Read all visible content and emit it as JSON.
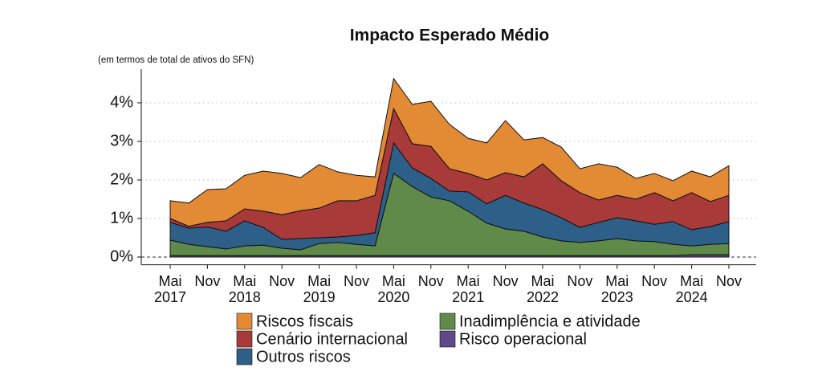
{
  "chart_data": {
    "type": "stacked_area",
    "title": "Impacto Esperado Médio",
    "subtitle": "(em termos de total de ativos do SFN)",
    "categories": [
      "Mai\n2017",
      null,
      "Nov",
      null,
      "Mai\n2018",
      null,
      "Nov",
      null,
      "Mai\n2019",
      null,
      "Nov",
      null,
      "Mai\n2020",
      null,
      "Nov",
      null,
      "Mai\n2021",
      null,
      "Nov",
      null,
      "Mai\n2022",
      null,
      "Nov",
      null,
      "Mai\n2023",
      null,
      "Nov",
      null,
      "Mai\n2024",
      null,
      "Nov"
    ],
    "ylim": [
      -0.2,
      4.8
    ],
    "yticks": [
      {
        "value": 0,
        "label": "0%"
      },
      {
        "value": 1,
        "label": "1%"
      },
      {
        "value": 2,
        "label": "2%"
      },
      {
        "value": 3,
        "label": "3%"
      },
      {
        "value": 4,
        "label": "4%"
      }
    ],
    "grid": true,
    "series": [
      {
        "name": "Riscos fiscais",
        "color": "#e38a35",
        "values": [
          0.46,
          0.6,
          0.85,
          0.83,
          0.87,
          1.04,
          1.07,
          0.86,
          1.13,
          0.75,
          0.66,
          0.48,
          0.78,
          1.02,
          1.17,
          1.15,
          0.91,
          0.96,
          1.35,
          0.96,
          0.68,
          0.87,
          0.62,
          0.94,
          0.73,
          0.54,
          0.5,
          0.52,
          0.56,
          0.64,
          0.77
        ]
      },
      {
        "name": "Cenário internacional",
        "color": "#a83a3a",
        "values": [
          0.1,
          0.05,
          0.12,
          0.27,
          0.31,
          0.42,
          0.64,
          0.72,
          0.77,
          0.94,
          0.9,
          0.97,
          0.89,
          0.63,
          0.83,
          0.58,
          0.48,
          0.62,
          0.59,
          0.68,
          1.19,
          0.96,
          0.9,
          0.58,
          0.58,
          0.56,
          0.82,
          0.54,
          0.96,
          0.65,
          0.68
        ]
      },
      {
        "name": "Outros riscos",
        "color": "#2e5f88",
        "values": [
          0.46,
          0.42,
          0.51,
          0.46,
          0.65,
          0.46,
          0.23,
          0.29,
          0.15,
          0.14,
          0.23,
          0.34,
          0.79,
          0.48,
          0.48,
          0.25,
          0.5,
          0.5,
          0.87,
          0.73,
          0.71,
          0.6,
          0.39,
          0.48,
          0.54,
          0.52,
          0.45,
          0.59,
          0.42,
          0.46,
          0.57
        ]
      },
      {
        "name": "Inadimplência e atividade",
        "color": "#5f8a4a",
        "values": [
          0.4,
          0.29,
          0.23,
          0.17,
          0.25,
          0.27,
          0.19,
          0.15,
          0.31,
          0.34,
          0.29,
          0.25,
          2.13,
          1.79,
          1.52,
          1.42,
          1.15,
          0.84,
          0.69,
          0.63,
          0.48,
          0.38,
          0.34,
          0.38,
          0.44,
          0.38,
          0.36,
          0.29,
          0.23,
          0.27,
          0.29
        ]
      },
      {
        "name": "Risco operacional",
        "color": "#5e4a86",
        "values": [
          0.04,
          0.04,
          0.04,
          0.04,
          0.04,
          0.04,
          0.04,
          0.04,
          0.04,
          0.04,
          0.04,
          0.04,
          0.04,
          0.04,
          0.04,
          0.04,
          0.04,
          0.04,
          0.04,
          0.04,
          0.04,
          0.04,
          0.04,
          0.04,
          0.04,
          0.04,
          0.04,
          0.04,
          0.06,
          0.06,
          0.06
        ]
      }
    ]
  }
}
